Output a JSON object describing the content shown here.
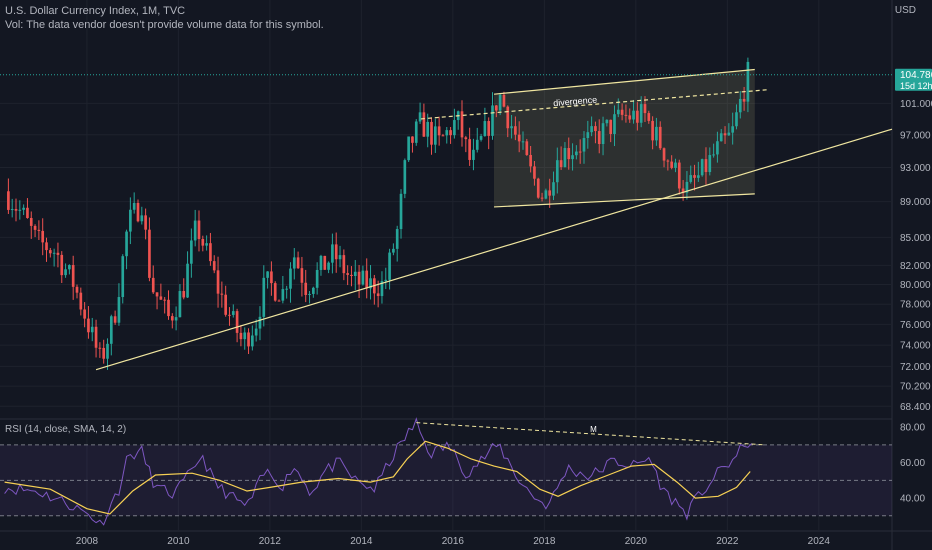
{
  "header": {
    "title": "U.S. Dollar Currency Index, 1M, TVC",
    "volume_note": "Vol: The data vendor doesn't provide volume data for this symbol.",
    "currency": "USD"
  },
  "price_badge": {
    "value": "104.786",
    "countdown": "15d 12h"
  },
  "annotations": {
    "divergence": "divergence",
    "rsi_mark": "M"
  },
  "rsi_label": "RSI (14, close, SMA, 14, 2)",
  "colors": {
    "bg": "#131722",
    "up": "#26a69a",
    "down": "#ef5350",
    "trend": "#f0e6a0",
    "rsi": "#7e57c2",
    "rsi_ma": "#f7d154",
    "badge": "#26a69a"
  },
  "chart_data": [
    {
      "type": "candlestick",
      "title": "U.S. Dollar Currency Index, 1M, TVC",
      "x_ticks": [
        "2008",
        "2010",
        "2012",
        "2014",
        "2016",
        "2018",
        "2020",
        "2022",
        "2024"
      ],
      "y_ticks": [
        "104.786",
        "101.000",
        "97.000",
        "93.000",
        "89.000",
        "85.000",
        "82.000",
        "80.000",
        "78.000",
        "76.000",
        "74.000",
        "72.000",
        "70.200",
        "68.400"
      ],
      "y_scale": "log",
      "xlim": [
        2006.1,
        2025.6
      ],
      "ylim": [
        67.9,
        111
      ],
      "monthly_close_path": [
        [
          2006.2,
          90.2
        ],
        [
          2006.6,
          87.5
        ],
        [
          2006.9,
          84.6
        ],
        [
          2007.3,
          83.5
        ],
        [
          2007.7,
          80.2
        ],
        [
          2008.0,
          76.4
        ],
        [
          2008.3,
          72.4
        ],
        [
          2008.6,
          76.8
        ],
        [
          2008.9,
          86.5
        ],
        [
          2009.2,
          89.0
        ],
        [
          2009.4,
          80.0
        ],
        [
          2009.8,
          76.5
        ],
        [
          2010.1,
          79.4
        ],
        [
          2010.4,
          86.3
        ],
        [
          2010.7,
          82.1
        ],
        [
          2010.9,
          79.1
        ],
        [
          2011.4,
          74.2
        ],
        [
          2011.7,
          76.3
        ],
        [
          2011.9,
          80.2
        ],
        [
          2012.3,
          79.2
        ],
        [
          2012.5,
          83.5
        ],
        [
          2012.8,
          79.7
        ],
        [
          2013.1,
          81.5
        ],
        [
          2013.4,
          83.2
        ],
        [
          2013.8,
          80.3
        ],
        [
          2014.3,
          79.9
        ],
        [
          2014.5,
          80.0
        ],
        [
          2014.8,
          86.0
        ],
        [
          2015.0,
          95.0
        ],
        [
          2015.3,
          98.5
        ],
        [
          2015.7,
          96.0
        ],
        [
          2016.1,
          98.9
        ],
        [
          2016.4,
          93.3
        ],
        [
          2016.9,
          99.9
        ],
        [
          2017.0,
          102.4
        ],
        [
          2017.4,
          96.5
        ],
        [
          2017.7,
          92.4
        ],
        [
          2018.0,
          89.3
        ],
        [
          2018.3,
          94.5
        ],
        [
          2018.8,
          95.8
        ],
        [
          2019.2,
          97.0
        ],
        [
          2019.7,
          99.3
        ],
        [
          2020.2,
          99.4
        ],
        [
          2020.5,
          96.2
        ],
        [
          2020.8,
          93.1
        ],
        [
          2021.1,
          90.4
        ],
        [
          2021.4,
          92.0
        ],
        [
          2021.8,
          95.3
        ],
        [
          2022.1,
          97.0
        ],
        [
          2022.3,
          101.5
        ],
        [
          2022.45,
          104.786
        ]
      ],
      "trendlines": [
        {
          "from": [
            2008.2,
            71.7
          ],
          "to": [
            2025.6,
            97.7
          ]
        },
        {
          "from": [
            2016.9,
            88.4
          ],
          "to": [
            2022.6,
            89.9
          ]
        },
        {
          "from": [
            2016.9,
            102.2
          ],
          "to": [
            2022.6,
            105.5
          ]
        },
        {
          "from": [
            2015.3,
            99.0
          ],
          "to": [
            2022.9,
            102.8
          ],
          "style": "dashed",
          "label": "divergence"
        }
      ],
      "channel_box": {
        "x": [
          2016.9,
          2022.6
        ]
      },
      "last_price": 104.786
    },
    {
      "type": "line",
      "title": "RSI (14, close, SMA, 14, 2)",
      "y_ticks": [
        "80.00",
        "60.00",
        "40.00"
      ],
      "ylim": [
        22,
        84
      ],
      "bands": {
        "upper": 70,
        "middle": 50,
        "lower": 30
      },
      "series": [
        {
          "name": "RSI",
          "points": [
            [
              2006.2,
              46
            ],
            [
              2006.9,
              44
            ],
            [
              2007.5,
              38
            ],
            [
              2008.1,
              30
            ],
            [
              2008.3,
              25
            ],
            [
              2008.7,
              45
            ],
            [
              2008.9,
              64
            ],
            [
              2009.2,
              66
            ],
            [
              2009.5,
              46
            ],
            [
              2009.9,
              42
            ],
            [
              2010.3,
              55
            ],
            [
              2010.5,
              65
            ],
            [
              2010.8,
              48
            ],
            [
              2011.2,
              40
            ],
            [
              2011.5,
              35
            ],
            [
              2011.9,
              55
            ],
            [
              2012.3,
              47
            ],
            [
              2012.5,
              59
            ],
            [
              2012.9,
              43
            ],
            [
              2013.2,
              55
            ],
            [
              2013.5,
              60
            ],
            [
              2013.9,
              49
            ],
            [
              2014.3,
              45
            ],
            [
              2014.6,
              60
            ],
            [
              2015.0,
              76
            ],
            [
              2015.2,
              82
            ],
            [
              2015.5,
              65
            ],
            [
              2015.9,
              70
            ],
            [
              2016.3,
              54
            ],
            [
              2016.9,
              68
            ],
            [
              2017.0,
              70
            ],
            [
              2017.5,
              48
            ],
            [
              2017.9,
              38
            ],
            [
              2018.1,
              36
            ],
            [
              2018.5,
              57
            ],
            [
              2019.0,
              52
            ],
            [
              2019.5,
              61
            ],
            [
              2020.0,
              58
            ],
            [
              2020.3,
              63
            ],
            [
              2020.6,
              44
            ],
            [
              2020.9,
              37
            ],
            [
              2021.1,
              31
            ],
            [
              2021.4,
              42
            ],
            [
              2021.9,
              57
            ],
            [
              2022.2,
              63
            ],
            [
              2022.4,
              72
            ],
            [
              2022.5,
              71
            ]
          ]
        },
        {
          "name": "RSI MA",
          "points": [
            [
              2006.2,
              49
            ],
            [
              2007.2,
              45
            ],
            [
              2008.0,
              34
            ],
            [
              2008.5,
              31
            ],
            [
              2009.0,
              44
            ],
            [
              2009.5,
              53
            ],
            [
              2010.3,
              54
            ],
            [
              2010.9,
              50
            ],
            [
              2011.5,
              44
            ],
            [
              2012.0,
              46
            ],
            [
              2012.7,
              49
            ],
            [
              2013.5,
              51
            ],
            [
              2014.2,
              49
            ],
            [
              2014.7,
              52
            ],
            [
              2015.0,
              62
            ],
            [
              2015.4,
              72
            ],
            [
              2015.9,
              68
            ],
            [
              2016.4,
              62
            ],
            [
              2016.9,
              58
            ],
            [
              2017.4,
              55
            ],
            [
              2017.9,
              45
            ],
            [
              2018.3,
              41
            ],
            [
              2018.8,
              47
            ],
            [
              2019.4,
              53
            ],
            [
              2019.9,
              58
            ],
            [
              2020.4,
              59
            ],
            [
              2020.9,
              49
            ],
            [
              2021.3,
              40
            ],
            [
              2021.8,
              41
            ],
            [
              2022.2,
              46
            ],
            [
              2022.5,
              55
            ]
          ]
        }
      ],
      "trendline": {
        "from": [
          2015.2,
          82.5
        ],
        "to": [
          2022.8,
          70
        ],
        "style": "dashed",
        "label": "M"
      }
    }
  ]
}
